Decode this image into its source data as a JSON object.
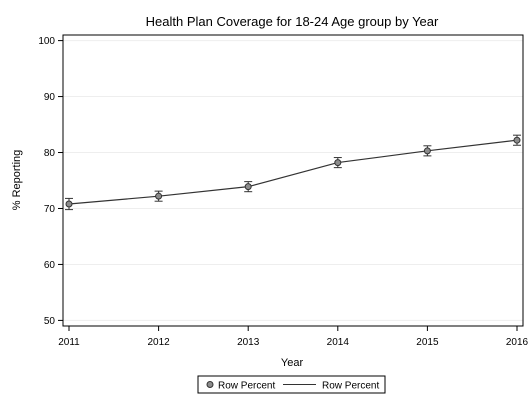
{
  "chart_data": {
    "type": "line",
    "title": "Health Plan Coverage for 18-24 Age group by Year",
    "xlabel": "Year",
    "ylabel": "% Reporting",
    "x": [
      2011,
      2012,
      2013,
      2014,
      2015,
      2016
    ],
    "x_tick_labels": [
      "2011",
      "2012",
      "2013",
      "2014",
      "2015",
      "2016"
    ],
    "ylim": [
      49,
      101
    ],
    "y_ticks": [
      50,
      60,
      70,
      80,
      90,
      100
    ],
    "y_tick_labels": [
      "50",
      "60",
      "70",
      "80",
      "90",
      "100"
    ],
    "grid": "horizontal",
    "series": [
      {
        "name": "Row Percent",
        "values": [
          70.8,
          72.2,
          73.9,
          78.2,
          80.3,
          82.2
        ],
        "lower": [
          69.8,
          71.3,
          73.0,
          77.3,
          79.4,
          81.3
        ],
        "upper": [
          71.8,
          73.1,
          74.8,
          79.1,
          81.2,
          83.1
        ]
      }
    ],
    "legend": {
      "position": "bottom",
      "entries": [
        {
          "label": "Row Percent",
          "symbol": "marker"
        },
        {
          "label": "Row Percent",
          "symbol": "line"
        }
      ]
    },
    "colors": {
      "line": "#333333",
      "marker_fill": "#8c8c8c",
      "grid": "#eeeeee",
      "axis": "#000000"
    }
  }
}
